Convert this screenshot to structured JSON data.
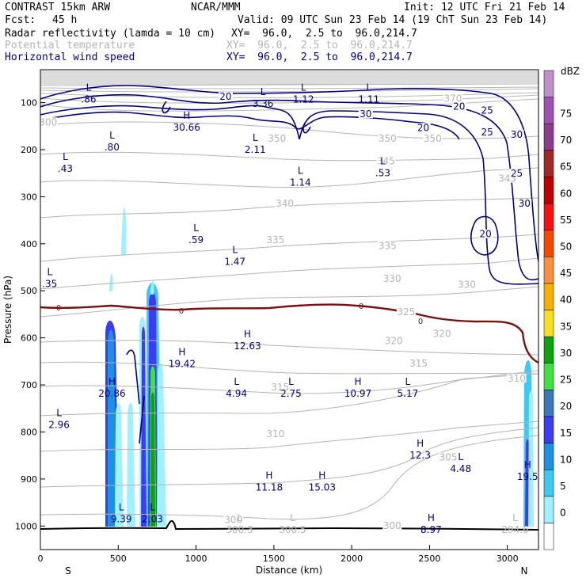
{
  "header": {
    "model": "CONTRAST 15km ARW",
    "center": "NCAR/MMM",
    "init": "Init: 12 UTC Fri 21 Feb 14",
    "fcst_label": "Fcst:",
    "fcst_value": "45 h",
    "valid": "Valid: 09 UTC Sun 23 Feb 14 (19 ChT Sun 23 Feb 14)",
    "fields": [
      {
        "name": "Radar reflectivity (lamda = 10 cm)",
        "xy": "XY=  96.0,  2.5 to  96.0,214.7"
      },
      {
        "name": "Potential temperature",
        "xy": "XY=  96.0,  2.5 to  96.0,214.7"
      },
      {
        "name": "Horizontal wind speed",
        "xy": "XY=  96.0,  2.5 to  96.0,214.7"
      }
    ]
  },
  "chart_data": {
    "type": "cross-section",
    "xlabel": "Distance (km)",
    "ylabel": "Pressure (hPa)",
    "xlim": [
      0,
      3200
    ],
    "ylim": [
      1050,
      30
    ],
    "x_ticks": [
      0,
      500,
      1000,
      1500,
      2000,
      2500,
      3000
    ],
    "y_ticks": [
      100,
      200,
      300,
      400,
      500,
      600,
      700,
      800,
      900,
      1000
    ],
    "x_end_labels": {
      "left": "S",
      "right": "N"
    },
    "colorbar": {
      "unit": "dBZ",
      "levels": [
        0,
        5,
        10,
        15,
        20,
        25,
        30,
        35,
        40,
        45,
        50,
        55,
        60,
        65,
        70,
        75
      ],
      "colors": [
        "#ffffff",
        "#a0f0ff",
        "#3ec8f4",
        "#1e90e0",
        "#3c3cf0",
        "#3a78b8",
        "#40e040",
        "#10a010",
        "#f8e020",
        "#f8b000",
        "#f89040",
        "#f84800",
        "#f81010",
        "#c00000",
        "#a02828",
        "#8c3c8c",
        "#a050b0",
        "#c090c8"
      ]
    },
    "freezing_level_label": "0",
    "theta_labels": [
      {
        "text": "300",
        "x": 50,
        "p": 145
      },
      {
        "text": "350",
        "x": 1520,
        "p": 180
      },
      {
        "text": "350",
        "x": 2230,
        "p": 180
      },
      {
        "text": "350",
        "x": 2520,
        "p": 180
      },
      {
        "text": "345",
        "x": 2220,
        "p": 228
      },
      {
        "text": "345",
        "x": 3000,
        "p": 265
      },
      {
        "text": "340",
        "x": 1570,
        "p": 318
      },
      {
        "text": "335",
        "x": 1510,
        "p": 395
      },
      {
        "text": "335",
        "x": 2230,
        "p": 408
      },
      {
        "text": "330",
        "x": 2260,
        "p": 478
      },
      {
        "text": "330",
        "x": 2740,
        "p": 490
      },
      {
        "text": "325",
        "x": 2350,
        "p": 548
      },
      {
        "text": "320",
        "x": 2270,
        "p": 610
      },
      {
        "text": "320",
        "x": 2580,
        "p": 595
      },
      {
        "text": "315",
        "x": 2430,
        "p": 658
      },
      {
        "text": "310",
        "x": 3060,
        "p": 690
      },
      {
        "text": "315",
        "x": 1540,
        "p": 708
      },
      {
        "text": "310",
        "x": 1510,
        "p": 808
      },
      {
        "text": "305",
        "x": 2620,
        "p": 857
      },
      {
        "text": "300",
        "x": 1240,
        "p": 990
      },
      {
        "text": "300",
        "x": 2260,
        "p": 1003
      },
      {
        "text": "370",
        "x": 2650,
        "p": 95
      }
    ],
    "wind_contour_labels": [
      {
        "text": "20",
        "x": 1190,
        "p": 91
      },
      {
        "text": "20",
        "x": 2690,
        "p": 112
      },
      {
        "text": "25",
        "x": 2870,
        "p": 120
      },
      {
        "text": "30",
        "x": 2090,
        "p": 128
      },
      {
        "text": "20",
        "x": 2460,
        "p": 157
      },
      {
        "text": "25",
        "x": 2870,
        "p": 166
      },
      {
        "text": "30",
        "x": 3060,
        "p": 171
      },
      {
        "text": "25",
        "x": 3060,
        "p": 254
      },
      {
        "text": "30",
        "x": 3110,
        "p": 318
      },
      {
        "text": "20",
        "x": 2860,
        "p": 383
      }
    ],
    "extrema": [
      {
        "type": "L",
        "value": ".86",
        "x": 310,
        "p": 88
      },
      {
        "type": "L",
        "value": "1.12",
        "x": 1690,
        "p": 88
      },
      {
        "type": "L",
        "value": "1.11",
        "x": 2110,
        "p": 88
      },
      {
        "type": "L",
        "value": "3.36",
        "x": 1430,
        "p": 97
      },
      {
        "type": "H",
        "value": "30.66",
        "x": 940,
        "p": 148
      },
      {
        "type": "L",
        "value": ".80",
        "x": 460,
        "p": 190
      },
      {
        "type": "L",
        "value": "2.11",
        "x": 1380,
        "p": 195
      },
      {
        "type": "L",
        "value": ".43",
        "x": 160,
        "p": 235
      },
      {
        "type": "L",
        "value": "1.14",
        "x": 1670,
        "p": 265
      },
      {
        "type": "L",
        "value": ".53",
        "x": 2200,
        "p": 245
      },
      {
        "type": "L",
        "value": ".59",
        "x": 1000,
        "p": 387
      },
      {
        "type": "L",
        "value": "1.47",
        "x": 1250,
        "p": 433
      },
      {
        "type": "L",
        "value": ".35",
        "x": 60,
        "p": 480
      },
      {
        "type": "H",
        "value": "12.63",
        "x": 1330,
        "p": 612
      },
      {
        "type": "H",
        "value": "19.42",
        "x": 910,
        "p": 650
      },
      {
        "type": "H",
        "value": "20.86",
        "x": 460,
        "p": 713
      },
      {
        "type": "L",
        "value": "4.94",
        "x": 1260,
        "p": 713
      },
      {
        "type": "L",
        "value": "2.75",
        "x": 1610,
        "p": 713
      },
      {
        "type": "H",
        "value": "10.97",
        "x": 2040,
        "p": 713
      },
      {
        "type": "L",
        "value": "5.17",
        "x": 2360,
        "p": 713
      },
      {
        "type": "L",
        "value": "2.96",
        "x": 120,
        "p": 780
      },
      {
        "type": "H",
        "value": "12.3",
        "x": 2440,
        "p": 845
      },
      {
        "type": "L",
        "value": "4.48",
        "x": 2700,
        "p": 873
      },
      {
        "type": "H",
        "value": "19.5",
        "x": 3130,
        "p": 890
      },
      {
        "type": "H",
        "value": "11.18",
        "x": 1470,
        "p": 913
      },
      {
        "type": "H",
        "value": "15.03",
        "x": 1810,
        "p": 913
      },
      {
        "type": "L",
        "value": "9.39",
        "x": 520,
        "p": 980
      },
      {
        "type": "L",
        "value": "2.03",
        "x": 720,
        "p": 980
      },
      {
        "type": "H",
        "value": "8.97",
        "x": 2510,
        "p": 1003
      },
      {
        "type": "L",
        "value": "300.3",
        "x": 1280,
        "p": 1003
      },
      {
        "type": "L",
        "value": "300.5",
        "x": 1620,
        "p": 1003
      },
      {
        "type": "L",
        "value": "294.6",
        "x": 3050,
        "p": 1003
      }
    ]
  }
}
